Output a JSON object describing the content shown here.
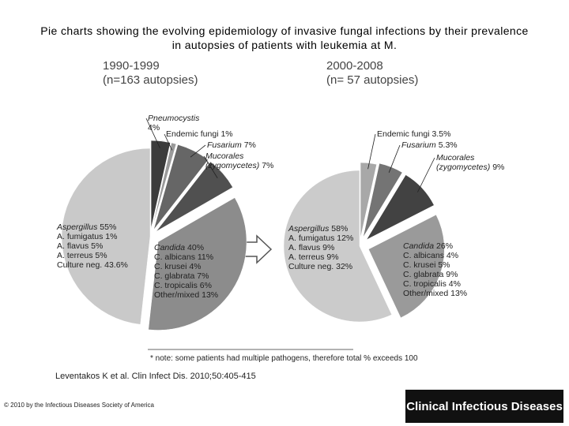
{
  "title": "Pie charts showing the evolving epidemiology of invasive fungal infections by their prevalence in autopsies of patients with leukemia at M.",
  "chart_data": [
    {
      "type": "pie",
      "title": "1990-1999",
      "subtitle": "(n=163 autopsies)",
      "categories": [
        "Pneumocystis",
        "Endemic fungi",
        "Fusarium",
        "Mucorales (zygomycetes)",
        "Candida",
        "Aspergillus"
      ],
      "values": [
        4,
        1,
        7,
        7,
        40,
        55
      ],
      "value_labels": [
        "4%",
        "1%",
        "7%",
        "7%",
        "40%",
        "55%"
      ],
      "colors": [
        "#3c3c3c",
        "#9a9a9a",
        "#666666",
        "#505050",
        "#8c8c8c",
        "#c9c9c9"
      ],
      "breakdowns": [
        null,
        null,
        null,
        null,
        [
          "C. albicans 11%",
          "C. krusei 4%",
          "C. glabrata 7%",
          "C. tropicalis 6%",
          "Other/mixed 13%"
        ],
        [
          "A. fumigatus 1%",
          "A. flavus 5%",
          "A. terreus 5%",
          "Culture neg. 43.6%"
        ]
      ]
    },
    {
      "type": "pie",
      "title": "2000-2008",
      "subtitle": "(n= 57 autopsies)",
      "categories": [
        "Endemic fungi",
        "Fusarium",
        "Mucorales (zygomycetes)",
        "Candida",
        "Aspergillus"
      ],
      "values": [
        3.5,
        5.3,
        9,
        26,
        58
      ],
      "value_labels": [
        "3.5%",
        "5.3%",
        "9%",
        "26%",
        "58%"
      ],
      "colors": [
        "#a8a8a8",
        "#747474",
        "#424242",
        "#9a9a9a",
        "#cbcbcb"
      ],
      "breakdowns": [
        null,
        null,
        null,
        [
          "C. albicans 4%",
          "C. krusei 5%",
          "C. glabrata 9%",
          "C. tropicalis 4%",
          "Other/mixed 13%"
        ],
        [
          "A. fumigatus 12%",
          "A. flavus 9%",
          "A. terreus 9%",
          "Culture neg. 32%"
        ]
      ]
    }
  ],
  "note": "* note: some patients had multiple pathogens, therefore total % exceeds 100",
  "citation": "Leventakos K et al. Clin Infect Dis. 2010;50:405-415",
  "copyright": "© 2010 by the Infectious Diseases Society of America",
  "journal": "Clinical Infectious Diseases"
}
